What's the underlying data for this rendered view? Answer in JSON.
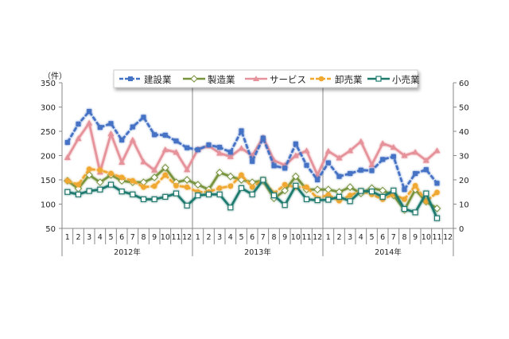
{
  "chart_data": {
    "type": "line",
    "unit_label": "（件）",
    "years": [
      "2012年",
      "2013年",
      "2014年"
    ],
    "months": [
      "1",
      "2",
      "3",
      "4",
      "5",
      "6",
      "7",
      "8",
      "9",
      "10",
      "11",
      "12"
    ],
    "left_axis": {
      "range": [
        50,
        350
      ],
      "ticks": [
        50,
        100,
        150,
        200,
        250,
        300,
        350
      ]
    },
    "right_axis": {
      "range": [
        0,
        60
      ],
      "ticks": [
        0,
        10,
        20,
        30,
        40,
        50,
        60
      ]
    },
    "grid": false,
    "legend_placement": "top",
    "series": [
      {
        "name": "建設業",
        "color": "#4472c4",
        "marker": "square-filled",
        "values": [
          227,
          265,
          291,
          258,
          266,
          232,
          259,
          279,
          243,
          242,
          230,
          216,
          212,
          222,
          217,
          207,
          251,
          188,
          236,
          179,
          174,
          224,
          180,
          150,
          185,
          157,
          163,
          170,
          169,
          192,
          198,
          130,
          163,
          171,
          143
        ]
      },
      {
        "name": "製造業",
        "color": "#77933c",
        "marker": "diamond-open",
        "values": [
          148,
          132,
          160,
          145,
          160,
          148,
          145,
          145,
          155,
          175,
          145,
          150,
          140,
          130,
          165,
          157,
          150,
          145,
          148,
          112,
          128,
          157,
          130,
          130,
          130,
          125,
          135,
          122,
          133,
          128,
          118,
          88,
          130,
          105,
          91
        ]
      },
      {
        "name": "サービス",
        "color": "#e6929a",
        "marker": "triangle-filled",
        "values": [
          196,
          235,
          267,
          166,
          245,
          186,
          232,
          187,
          170,
          212,
          207,
          171,
          213,
          220,
          205,
          198,
          215,
          200,
          237,
          190,
          180,
          200,
          210,
          160,
          209,
          195,
          210,
          229,
          181,
          225,
          217,
          200,
          207,
          190,
          210
        ]
      },
      {
        "name": "卸売業",
        "color": "#f0a830",
        "marker": "circle-filled",
        "values": [
          148,
          140,
          172,
          170,
          163,
          155,
          148,
          135,
          137,
          160,
          138,
          135,
          125,
          125,
          133,
          137,
          160,
          135,
          150,
          122,
          140,
          135,
          135,
          112,
          119,
          107,
          118,
          127,
          120,
          110,
          120,
          110,
          138,
          106,
          124
        ]
      },
      {
        "name": "小売業",
        "color": "#1f7a6e",
        "marker": "square-open",
        "values": [
          125,
          120,
          127,
          130,
          140,
          126,
          120,
          110,
          110,
          115,
          122,
          97,
          118,
          120,
          120,
          93,
          133,
          120,
          150,
          118,
          98,
          138,
          110,
          108,
          109,
          115,
          106,
          127,
          126,
          115,
          128,
          90,
          83,
          122,
          71
        ]
      }
    ]
  }
}
